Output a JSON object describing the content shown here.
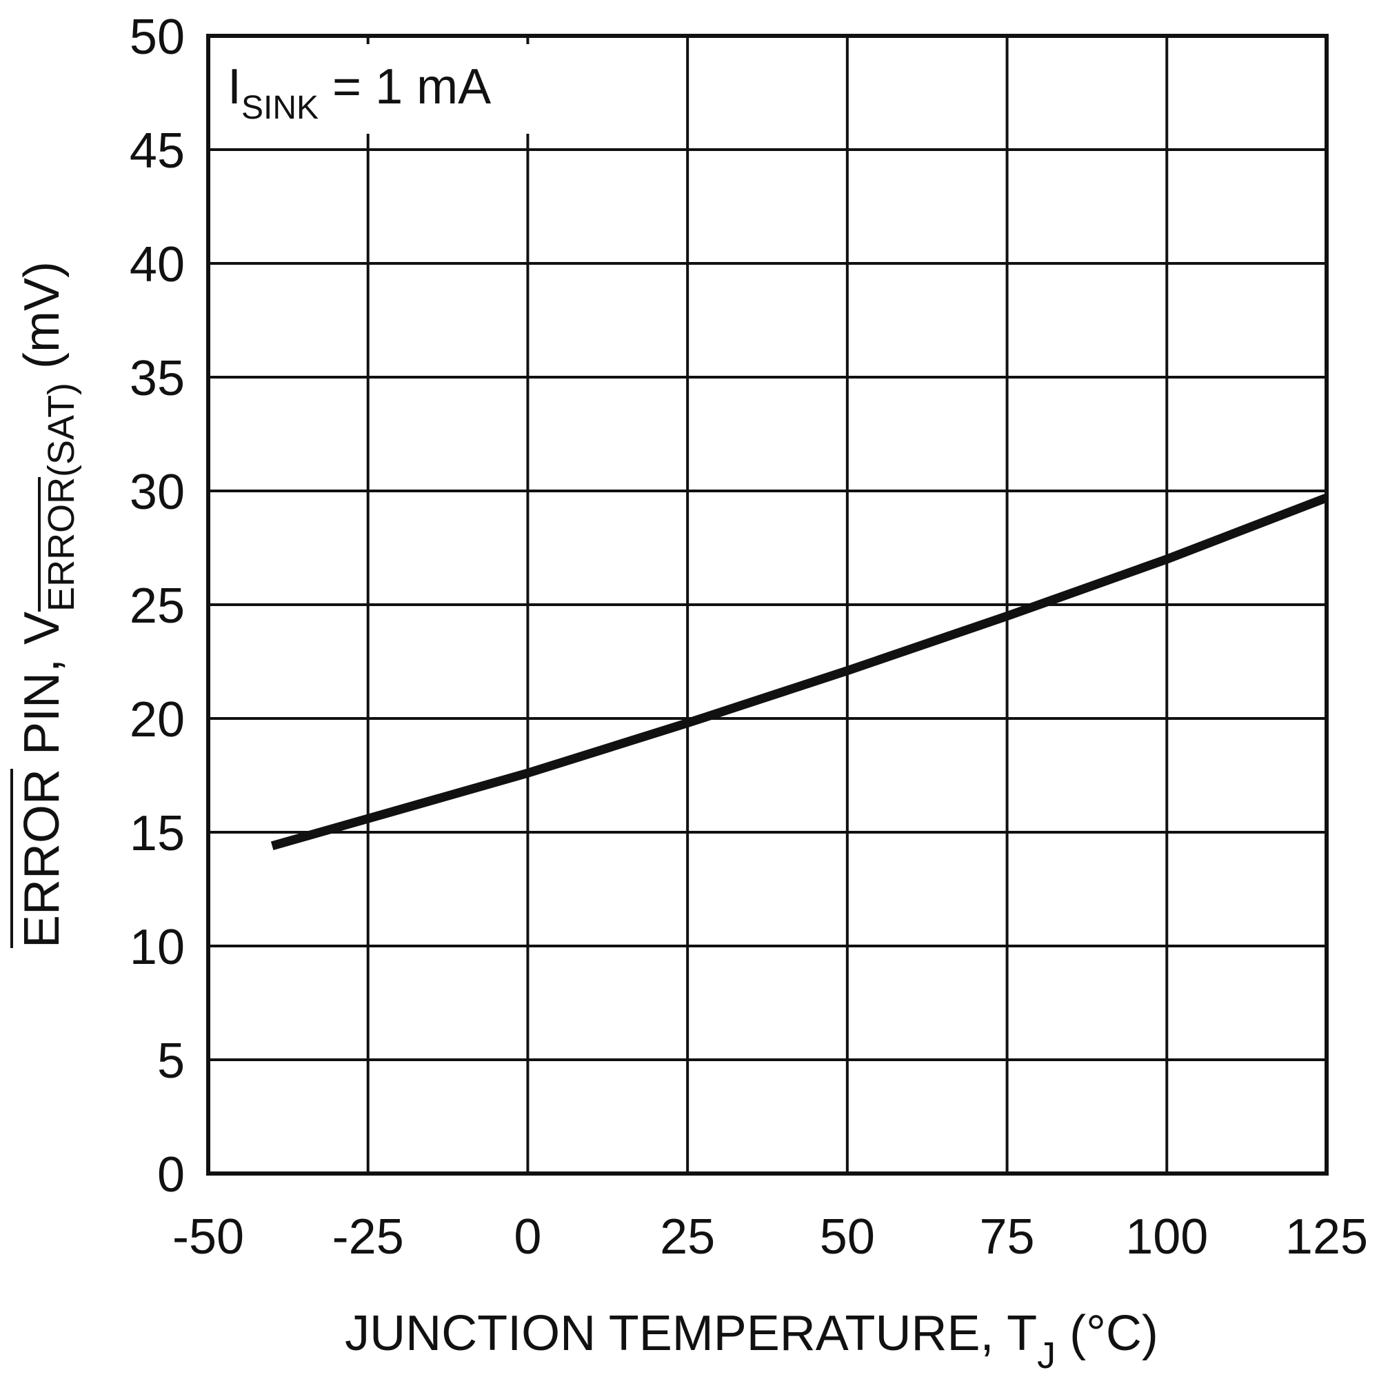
{
  "chart_data": {
    "type": "line",
    "xlabel_main": "JUNCTION TEMPERATURE, T",
    "xlabel_sub": "J",
    "xlabel_unit": " (°C)",
    "ylabel_overbar": "ERROR",
    "ylabel_mid": " PIN, V",
    "ylabel_sub": "ERROR",
    "ylabel_sub_rest": "(SAT)",
    "ylabel_unit": " (mV)",
    "annotation_main": "I",
    "annotation_sub": "SINK",
    "annotation_rest": " = 1 mA",
    "xlim": [
      -50,
      125
    ],
    "ylim": [
      0,
      50
    ],
    "x_ticks": [
      -50,
      -25,
      0,
      25,
      50,
      75,
      100,
      125
    ],
    "x_tick_labels": [
      "-50",
      "-25",
      "0",
      "25",
      "50",
      "75",
      "100",
      "125"
    ],
    "y_ticks": [
      0,
      5,
      10,
      15,
      20,
      25,
      30,
      35,
      40,
      45,
      50
    ],
    "y_tick_labels": [
      "0",
      "5",
      "10",
      "15",
      "20",
      "25",
      "30",
      "35",
      "40",
      "45",
      "50"
    ],
    "grid": true,
    "line_color": "#111111",
    "grid_color": "#111111",
    "series": [
      {
        "x": [
          -40,
          -25,
          0,
          25,
          50,
          75,
          100,
          125
        ],
        "y": [
          14.4,
          15.6,
          17.6,
          19.8,
          22.1,
          24.5,
          27.0,
          29.7
        ]
      }
    ]
  }
}
